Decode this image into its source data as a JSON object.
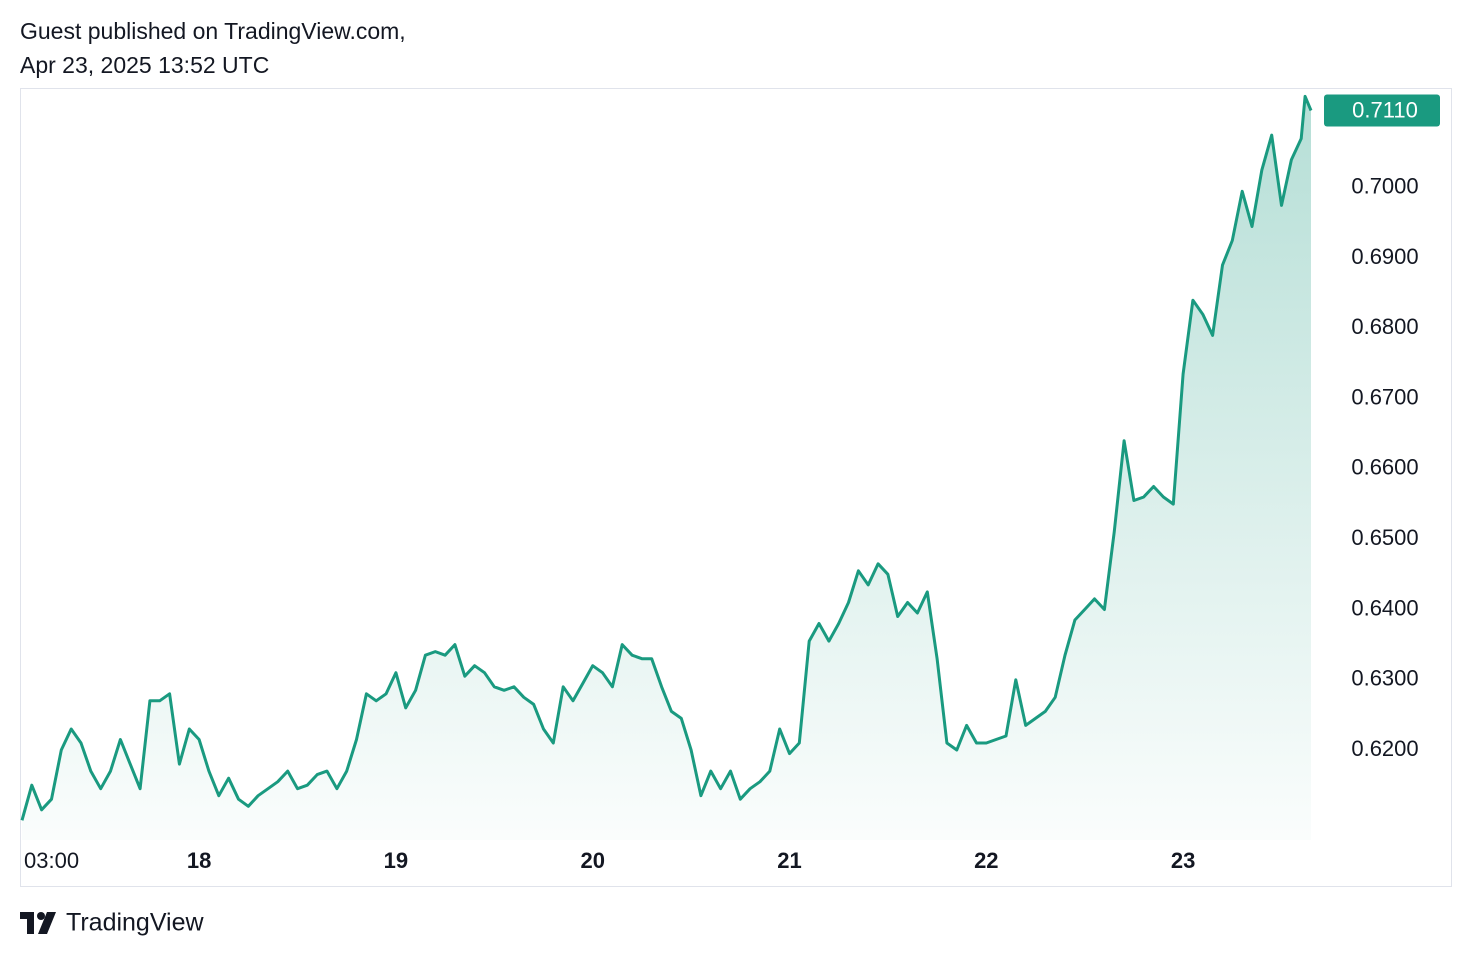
{
  "header": {
    "line1": "Guest published on TradingView.com,",
    "line2": "Apr 23, 2025 13:52 UTC"
  },
  "chart_data": {
    "type": "area",
    "color": "#1a9a80",
    "x": [
      17.1,
      17.15,
      17.2,
      17.25,
      17.3,
      17.35,
      17.4,
      17.45,
      17.5,
      17.55,
      17.6,
      17.65,
      17.7,
      17.75,
      17.8,
      17.85,
      17.9,
      17.95,
      18.0,
      18.05,
      18.1,
      18.15,
      18.2,
      18.25,
      18.3,
      18.35,
      18.4,
      18.45,
      18.5,
      18.55,
      18.6,
      18.65,
      18.7,
      18.75,
      18.8,
      18.85,
      18.9,
      18.95,
      19.0,
      19.05,
      19.1,
      19.15,
      19.2,
      19.25,
      19.3,
      19.35,
      19.4,
      19.45,
      19.5,
      19.55,
      19.6,
      19.65,
      19.7,
      19.75,
      19.8,
      19.85,
      19.9,
      19.95,
      20.0,
      20.05,
      20.1,
      20.15,
      20.2,
      20.25,
      20.3,
      20.35,
      20.4,
      20.45,
      20.5,
      20.55,
      20.6,
      20.65,
      20.7,
      20.75,
      20.8,
      20.85,
      20.9,
      20.95,
      21.0,
      21.05,
      21.1,
      21.15,
      21.2,
      21.25,
      21.3,
      21.35,
      21.4,
      21.45,
      21.5,
      21.55,
      21.6,
      21.65,
      21.7,
      21.75,
      21.8,
      21.85,
      21.9,
      21.95,
      22.0,
      22.05,
      22.1,
      22.15,
      22.2,
      22.25,
      22.3,
      22.35,
      22.4,
      22.45,
      22.5,
      22.55,
      22.6,
      22.65,
      22.7,
      22.75,
      22.8,
      22.85,
      22.9,
      22.95,
      23.0,
      23.05,
      23.1,
      23.15,
      23.2,
      23.25,
      23.3,
      23.35,
      23.4,
      23.45,
      23.5,
      23.55,
      23.6,
      23.62,
      23.65
    ],
    "values": [
      0.61,
      0.615,
      0.6115,
      0.613,
      0.62,
      0.623,
      0.621,
      0.617,
      0.6145,
      0.617,
      0.6215,
      0.618,
      0.6145,
      0.627,
      0.627,
      0.628,
      0.618,
      0.623,
      0.6215,
      0.617,
      0.6135,
      0.616,
      0.613,
      0.612,
      0.6135,
      0.6145,
      0.6155,
      0.617,
      0.6145,
      0.615,
      0.6165,
      0.617,
      0.6145,
      0.617,
      0.6215,
      0.628,
      0.627,
      0.628,
      0.631,
      0.626,
      0.6285,
      0.6335,
      0.634,
      0.6335,
      0.635,
      0.6305,
      0.632,
      0.631,
      0.629,
      0.6285,
      0.629,
      0.6275,
      0.6265,
      0.623,
      0.621,
      0.629,
      0.627,
      0.6295,
      0.632,
      0.631,
      0.629,
      0.635,
      0.6335,
      0.633,
      0.633,
      0.629,
      0.6255,
      0.6245,
      0.62,
      0.6135,
      0.617,
      0.6145,
      0.617,
      0.613,
      0.6145,
      0.6155,
      0.617,
      0.623,
      0.6195,
      0.621,
      0.6355,
      0.638,
      0.6355,
      0.638,
      0.641,
      0.6455,
      0.6435,
      0.6465,
      0.645,
      0.639,
      0.641,
      0.6395,
      0.6425,
      0.633,
      0.621,
      0.62,
      0.6235,
      0.621,
      0.621,
      0.6215,
      0.622,
      0.63,
      0.6235,
      0.6245,
      0.6255,
      0.6275,
      0.6335,
      0.6385,
      0.64,
      0.6415,
      0.64,
      0.651,
      0.664,
      0.6555,
      0.656,
      0.6575,
      0.656,
      0.655,
      0.6735,
      0.684,
      0.682,
      0.679,
      0.689,
      0.6925,
      0.6995,
      0.6945,
      0.7025,
      0.7075,
      0.6975,
      0.704,
      0.707,
      0.713,
      0.711
    ],
    "xlim": [
      17.09,
      23.66
    ],
    "xticks": [
      {
        "value": 17.125,
        "label": "03:00"
      },
      18,
      19,
      20,
      21,
      22,
      23
    ],
    "ylim": [
      0.6072,
      0.7142
    ],
    "yticks": [
      {
        "value": 0.62,
        "label": "0.6200"
      },
      {
        "value": 0.63,
        "label": "0.6300"
      },
      {
        "value": 0.64,
        "label": "0.6400"
      },
      {
        "value": 0.65,
        "label": "0.6500"
      },
      {
        "value": 0.66,
        "label": "0.6600"
      },
      {
        "value": 0.67,
        "label": "0.6700"
      },
      {
        "value": 0.68,
        "label": "0.6800"
      },
      {
        "value": 0.69,
        "label": "0.6900"
      },
      {
        "value": 0.7,
        "label": "0.7000"
      }
    ],
    "last_price": {
      "value": 0.711,
      "label": "0.7110"
    },
    "grid": false
  },
  "footer": {
    "brand": "TradingView"
  }
}
